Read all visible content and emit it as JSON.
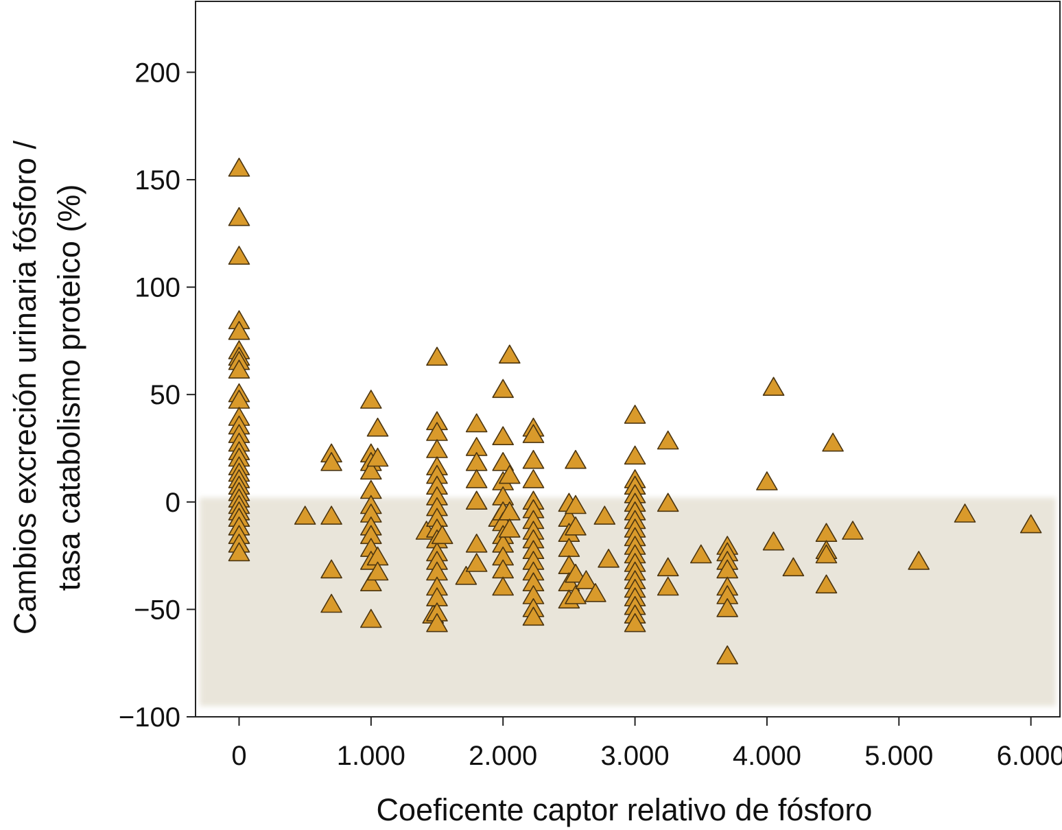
{
  "chart_data": {
    "type": "scatter",
    "xlabel": "Coeficente captor relativo de fósforo",
    "ylabel_lines": [
      "Cambios excreción urinaria fósforo /",
      "tasa catabolismo proteico (%)"
    ],
    "xlim": [
      -330,
      6220
    ],
    "ylim": [
      -100,
      233
    ],
    "xticks": [
      0,
      1000,
      2000,
      3000,
      4000,
      5000,
      6000
    ],
    "xtick_labels": [
      "0",
      "1.000",
      "2.000",
      "3.000",
      "4.000",
      "5.000",
      "6.000"
    ],
    "yticks": [
      -100,
      -50,
      0,
      50,
      100,
      150,
      200
    ],
    "ytick_labels": [
      "−100",
      "−50",
      "0",
      "50",
      "100",
      "150",
      "200"
    ],
    "shaded_band": {
      "y_from": -95,
      "y_to": 2,
      "color": "#e9e5da"
    },
    "marker": {
      "shape": "triangle",
      "fill": "#d99a2b",
      "edge": "#4a3410"
    },
    "grid": false,
    "legend": "none",
    "series": [
      {
        "points": [
          [
            0,
            155
          ],
          [
            0,
            132
          ],
          [
            0,
            114
          ],
          [
            0,
            84
          ],
          [
            0,
            79
          ],
          [
            0,
            70
          ],
          [
            0,
            67
          ],
          [
            0,
            65
          ],
          [
            0,
            61
          ],
          [
            0,
            50
          ],
          [
            0,
            47
          ],
          [
            0,
            39
          ],
          [
            0,
            35
          ],
          [
            0,
            31
          ],
          [
            0,
            27
          ],
          [
            0,
            23
          ],
          [
            0,
            20
          ],
          [
            0,
            16
          ],
          [
            0,
            13
          ],
          [
            0,
            10
          ],
          [
            0,
            7
          ],
          [
            0,
            4
          ],
          [
            0,
            1
          ],
          [
            0,
            -2
          ],
          [
            0,
            -5
          ],
          [
            0,
            -8
          ],
          [
            0,
            -12
          ],
          [
            0,
            -16
          ],
          [
            0,
            -20
          ],
          [
            0,
            -24
          ],
          [
            500,
            -7
          ],
          [
            700,
            22
          ],
          [
            700,
            18
          ],
          [
            700,
            -7
          ],
          [
            700,
            -32
          ],
          [
            700,
            -48
          ],
          [
            1000,
            47
          ],
          [
            1000,
            22
          ],
          [
            1000,
            18
          ],
          [
            1000,
            14
          ],
          [
            1000,
            5
          ],
          [
            1000,
            -2
          ],
          [
            1000,
            -6
          ],
          [
            1000,
            -12
          ],
          [
            1000,
            -16
          ],
          [
            1000,
            -22
          ],
          [
            1000,
            -28
          ],
          [
            1000,
            -38
          ],
          [
            1000,
            -55
          ],
          [
            1050,
            34
          ],
          [
            1050,
            20
          ],
          [
            1050,
            -26
          ],
          [
            1050,
            -33
          ],
          [
            1420,
            -14
          ],
          [
            1470,
            -53
          ],
          [
            1500,
            67
          ],
          [
            1500,
            37
          ],
          [
            1500,
            32
          ],
          [
            1500,
            24
          ],
          [
            1500,
            16
          ],
          [
            1500,
            12
          ],
          [
            1500,
            7
          ],
          [
            1500,
            2
          ],
          [
            1500,
            -3
          ],
          [
            1500,
            -8
          ],
          [
            1500,
            -13
          ],
          [
            1500,
            -18
          ],
          [
            1500,
            -24
          ],
          [
            1500,
            -28
          ],
          [
            1500,
            -33
          ],
          [
            1500,
            -40
          ],
          [
            1500,
            -45
          ],
          [
            1500,
            -52
          ],
          [
            1500,
            -57
          ],
          [
            1540,
            -16
          ],
          [
            1720,
            -35
          ],
          [
            1800,
            36
          ],
          [
            1800,
            25
          ],
          [
            1800,
            18
          ],
          [
            1800,
            10
          ],
          [
            1800,
            0
          ],
          [
            1800,
            -20
          ],
          [
            1800,
            -29
          ],
          [
            1970,
            -8
          ],
          [
            2000,
            52
          ],
          [
            2000,
            30
          ],
          [
            2000,
            18
          ],
          [
            2000,
            9
          ],
          [
            2000,
            2
          ],
          [
            2000,
            -5
          ],
          [
            2000,
            -10
          ],
          [
            2000,
            -16
          ],
          [
            2000,
            -20
          ],
          [
            2000,
            -26
          ],
          [
            2000,
            -32
          ],
          [
            2000,
            -40
          ],
          [
            2050,
            68
          ],
          [
            2050,
            12
          ],
          [
            2050,
            -5
          ],
          [
            2050,
            -13
          ],
          [
            2230,
            34
          ],
          [
            2230,
            31
          ],
          [
            2230,
            19
          ],
          [
            2230,
            10
          ],
          [
            2230,
            0
          ],
          [
            2230,
            -4
          ],
          [
            2230,
            -9
          ],
          [
            2230,
            -14
          ],
          [
            2230,
            -18
          ],
          [
            2230,
            -23
          ],
          [
            2230,
            -28
          ],
          [
            2230,
            -33
          ],
          [
            2230,
            -38
          ],
          [
            2230,
            -44
          ],
          [
            2230,
            -50
          ],
          [
            2230,
            -54
          ],
          [
            2500,
            -1
          ],
          [
            2500,
            -8
          ],
          [
            2500,
            -15
          ],
          [
            2500,
            -22
          ],
          [
            2500,
            -30
          ],
          [
            2500,
            -38
          ],
          [
            2500,
            -46
          ],
          [
            2550,
            19
          ],
          [
            2550,
            -2
          ],
          [
            2550,
            -12
          ],
          [
            2550,
            -34
          ],
          [
            2550,
            -44
          ],
          [
            2630,
            -37
          ],
          [
            2700,
            -43
          ],
          [
            2770,
            -7
          ],
          [
            2800,
            -27
          ],
          [
            3000,
            40
          ],
          [
            3000,
            21
          ],
          [
            3000,
            10
          ],
          [
            3000,
            7
          ],
          [
            3000,
            3
          ],
          [
            3000,
            -1
          ],
          [
            3000,
            -5
          ],
          [
            3000,
            -9
          ],
          [
            3000,
            -13
          ],
          [
            3000,
            -17
          ],
          [
            3000,
            -21
          ],
          [
            3000,
            -25
          ],
          [
            3000,
            -29
          ],
          [
            3000,
            -33
          ],
          [
            3000,
            -37
          ],
          [
            3000,
            -41
          ],
          [
            3000,
            -45
          ],
          [
            3000,
            -49
          ],
          [
            3000,
            -53
          ],
          [
            3000,
            -57
          ],
          [
            3250,
            28
          ],
          [
            3250,
            -1
          ],
          [
            3250,
            -31
          ],
          [
            3250,
            -40
          ],
          [
            3500,
            -25
          ],
          [
            3700,
            -21
          ],
          [
            3700,
            -24
          ],
          [
            3700,
            -28
          ],
          [
            3700,
            -32
          ],
          [
            3700,
            -40
          ],
          [
            3700,
            -44
          ],
          [
            3700,
            -50
          ],
          [
            3700,
            -72
          ],
          [
            4000,
            9
          ],
          [
            4050,
            53
          ],
          [
            4050,
            -19
          ],
          [
            4200,
            -31
          ],
          [
            4450,
            -15
          ],
          [
            4450,
            -23
          ],
          [
            4450,
            -25
          ],
          [
            4450,
            -39
          ],
          [
            4500,
            27
          ],
          [
            4650,
            -14
          ],
          [
            5150,
            -28
          ],
          [
            5500,
            -6
          ],
          [
            6000,
            -11
          ]
        ]
      }
    ]
  }
}
